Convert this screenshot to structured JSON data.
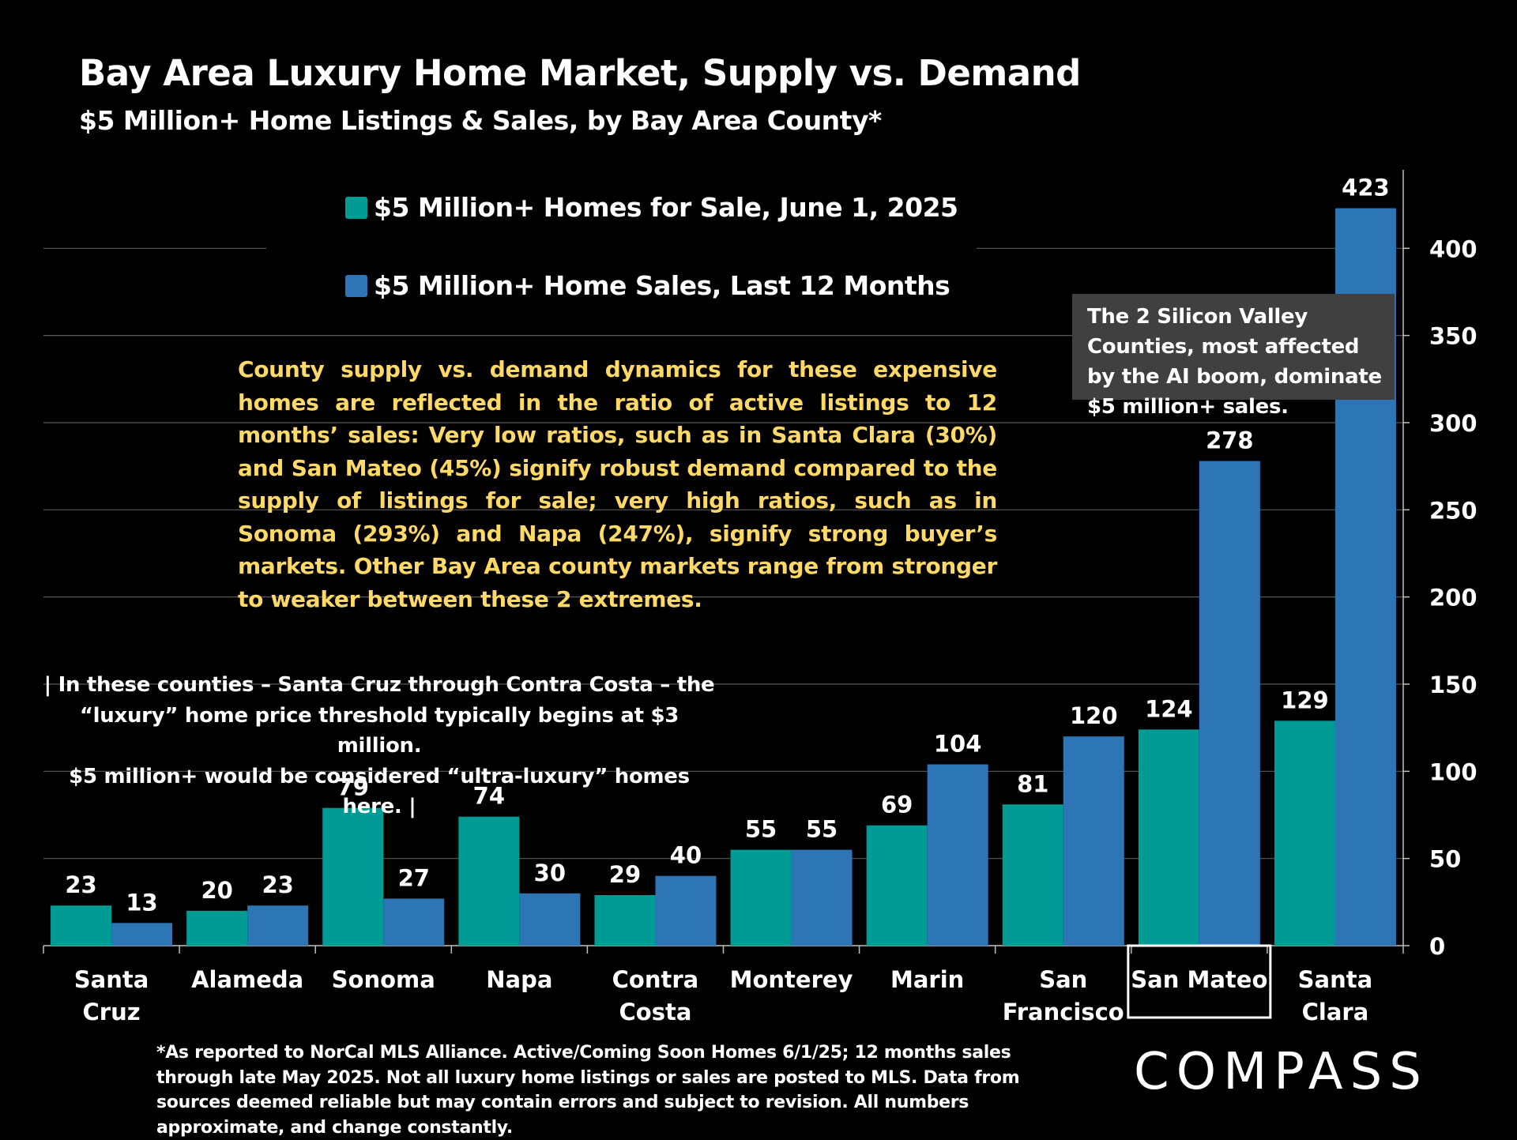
{
  "title": "Bay Area Luxury Home Market, Supply vs. Demand",
  "subtitle": "$5 Million+ Home Listings & Sales, by Bay Area County*",
  "colors": {
    "background": "#000000",
    "listings": "#009B95",
    "sales": "#2E75B6",
    "note_yellow": "#FFD966",
    "note_box": "#404040",
    "gridline": "#595959"
  },
  "notes": {
    "yellow": "County supply vs. demand dynamics for these expensive homes are reflected in the ratio of active listings to 12 months’ sales: Very low ratios, such as in Santa Clara (30%) and San Mateo (45%) signify robust demand compared to the supply of listings for sale; very high ratios, such as in Sonoma (293%) and Napa (247%), signify strong buyer’s markets. Other Bay Area county markets range from stronger to weaker between these 2 extremes.",
    "silicon_valley": "The 2 Silicon Valley Counties, most affected by the AI boom, dominate $5 million+ sales.",
    "luxury_line1": "| In these counties – Santa Cruz through Contra Costa – the",
    "luxury_line2": "“luxury” home price threshold typically begins at $3 million.",
    "luxury_line3": "$5 million+ would be considered “ultra-luxury” homes here. |"
  },
  "footnote": "*As reported to NorCal MLS Alliance. Active/Coming Soon Homes 6/1/25; 12 months sales through late May 2025. Not all luxury home listings or sales are posted to MLS. Data from sources deemed reliable but may contain errors and subject to revision. All numbers approximate, and change constantly.",
  "logo": "COMPASS",
  "chart_data": {
    "type": "bar",
    "categories": [
      "Santa Cruz",
      "Alameda",
      "Sonoma",
      "Napa",
      "Contra Costa",
      "Monterey",
      "Marin",
      "San Francisco",
      "San Mateo",
      "Santa Clara"
    ],
    "category_lines": [
      [
        "Santa",
        "Cruz"
      ],
      [
        "Alameda"
      ],
      [
        "Sonoma"
      ],
      [
        "Napa"
      ],
      [
        "Contra",
        "Costa"
      ],
      [
        "Monterey"
      ],
      [
        "Marin"
      ],
      [
        "San",
        "Francisco"
      ],
      [
        "San Mateo"
      ],
      [
        "Santa",
        "Clara"
      ]
    ],
    "highlighted_category": "San Mateo",
    "series": [
      {
        "name": "$5 Million+ Homes for Sale, June 1, 2025",
        "color": "#009B95",
        "values": [
          23,
          20,
          79,
          74,
          29,
          55,
          69,
          81,
          124,
          129
        ]
      },
      {
        "name": "$5 Million+ Home Sales, Last 12 Months",
        "color": "#2E75B6",
        "values": [
          13,
          23,
          27,
          30,
          40,
          55,
          104,
          120,
          278,
          423
        ]
      }
    ],
    "ylim": [
      0,
      445
    ],
    "yticks": [
      0,
      50,
      100,
      150,
      200,
      250,
      300,
      350,
      400
    ],
    "y_axis_side": "right",
    "grid": true,
    "legend": "top-center",
    "data_labels": true
  }
}
